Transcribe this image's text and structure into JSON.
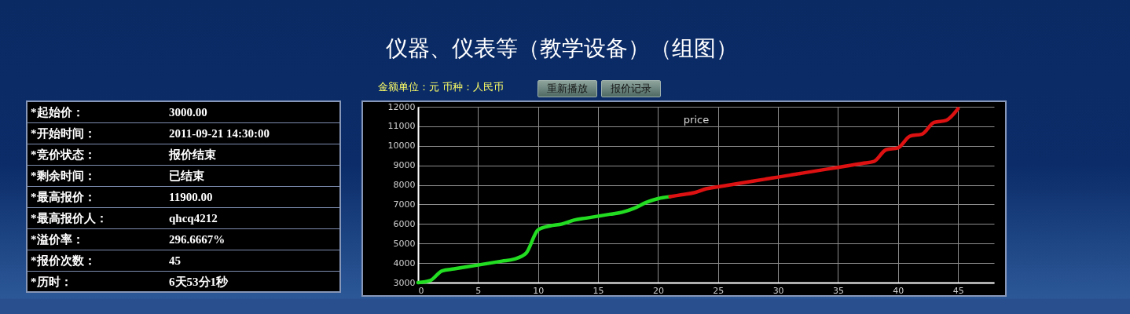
{
  "chart_data": [
    {
      "type": "other",
      "annotations": [
        "*起始价：",
        "3000.00",
        "*开始时间：",
        "2011-09-21 14:30:00",
        "*竞价状态：",
        "报价结束",
        "*剩余时间：",
        "已结束",
        "*最高报价：",
        "11900.00",
        "*最高报价人：",
        "qhcq4212",
        "*溢价率：",
        "296.6667%",
        "*报价次数：",
        "45",
        "*历时：",
        "6天53分1秒"
      ]
    },
    {
      "type": "line",
      "title": "仪器、仪表等（教学设备）（组图）",
      "subtitle": "金额单位：元 币种：人民币",
      "annotations": [
        "price",
        "重新播放",
        "报价记录"
      ],
      "series": [
        {
          "color": "#22dd22",
          "x": [
            0,
            1,
            2,
            3,
            4,
            5,
            6,
            7,
            8,
            9,
            10,
            11,
            12,
            13,
            14,
            15,
            16,
            17,
            18,
            19,
            20,
            21
          ],
          "values": [
            3000,
            3100,
            3600,
            3700,
            3800,
            3900,
            4000,
            4100,
            4200,
            4500,
            5700,
            5900,
            6000,
            6200,
            6300,
            6400,
            6500,
            6600,
            6800,
            7100,
            7300,
            7400
          ]
        },
        {
          "color": "#dd1111",
          "x": [
            21,
            22,
            23,
            24,
            25,
            26,
            27,
            28,
            29,
            30,
            31,
            32,
            33,
            34,
            35,
            36,
            37,
            38,
            39,
            40,
            41,
            42,
            43,
            44,
            45
          ],
          "values": [
            7400,
            7500,
            7600,
            7800,
            7900,
            8000,
            8100,
            8200,
            8300,
            8400,
            8500,
            8600,
            8700,
            8800,
            8900,
            9000,
            9100,
            9200,
            9800,
            9900,
            10500,
            10600,
            11200,
            11300,
            11900
          ]
        }
      ],
      "xlim": [
        0,
        48
      ],
      "xticks": [
        0,
        5,
        10,
        15,
        20,
        25,
        30,
        35,
        40,
        45
      ],
      "ylim": [
        3000,
        12000
      ],
      "yticks": [
        3000,
        4000,
        5000,
        6000,
        7000,
        8000,
        9000,
        10000,
        11000,
        12000
      ],
      "grid": true
    }
  ]
}
